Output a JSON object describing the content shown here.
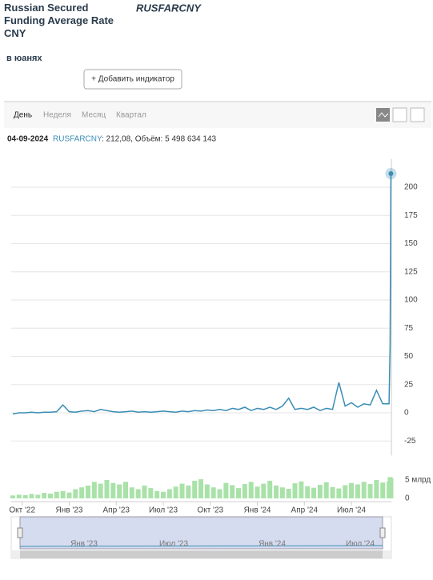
{
  "header": {
    "title": "Russian Secured Funding Average Rate CNY",
    "ticker": "RUSFARCNY",
    "unit": "в юанях"
  },
  "toolbar": {
    "button": "+ Добавить индикатор",
    "tabs": [
      "День",
      "Неделя",
      "Месяц",
      "Квартал"
    ],
    "active_tab": 0
  },
  "info": {
    "date": "04-09-2024",
    "text": ": 212,08, Объём: 5 498 634 143"
  },
  "chart_data": {
    "type": "line",
    "x": [
      -0.6,
      -0.2,
      0.2,
      0.6,
      1,
      1.4,
      1.8,
      2.2,
      2.6,
      3,
      3.4,
      3.8,
      4.2,
      4.6,
      5,
      5.4,
      5.8,
      6.2,
      6.6,
      7,
      7.4,
      7.8,
      8.2,
      8.6,
      9,
      9.4,
      9.8,
      10.2,
      10.6,
      11,
      11.4,
      11.8,
      12.2,
      12.6,
      13,
      13.4,
      13.8,
      14.2,
      14.6,
      15,
      15.4,
      15.8,
      16.2,
      16.6,
      17,
      17.4,
      17.8,
      18.2,
      18.6,
      19,
      19.4,
      19.8,
      20.2,
      20.6,
      21,
      21.4,
      21.8,
      22.2,
      22.6,
      23,
      23.4,
      23.47,
      23.52
    ],
    "series": [
      {
        "name": "RUSFARCNY",
        "color": "#3a8db5",
        "values": [
          -1,
          0,
          0,
          0.5,
          0,
          0.5,
          0.5,
          1,
          7,
          1,
          0.5,
          1.5,
          2,
          1,
          3,
          2,
          1,
          0.5,
          1,
          1.5,
          0.5,
          1,
          0.5,
          1,
          1.5,
          1,
          0.5,
          1.5,
          1,
          2,
          1.5,
          2.5,
          2,
          3,
          2,
          4,
          3,
          5,
          2,
          4,
          3,
          5,
          3,
          6,
          13,
          3,
          4,
          3,
          5,
          2,
          4,
          3,
          27,
          6,
          9,
          5,
          8,
          7,
          20,
          8,
          8,
          60,
          212.08
        ]
      }
    ],
    "volume": {
      "color": "#a9e2a9",
      "values": [
        0.8,
        1,
        0.9,
        1.2,
        1,
        1.5,
        1.3,
        1.8,
        2,
        1.6,
        2.5,
        3,
        3.5,
        4.5,
        4,
        5,
        4.2,
        3.8,
        4.5,
        3,
        2.5,
        3.5,
        2.8,
        2,
        1.8,
        2.5,
        3.2,
        4,
        3.5,
        4.8,
        5.2,
        3.8,
        3,
        2.5,
        4.2,
        3.6,
        2.8,
        3.9,
        4.5,
        3.2,
        4,
        4.8,
        3.5,
        3,
        2.6,
        4.1,
        4.6,
        3.3,
        2.9,
        3.7,
        4.4,
        3.1,
        2.7,
        3.6,
        4.2,
        3.8,
        4.5,
        3.9,
        5,
        4.3,
        4.6,
        5.8,
        5.5
      ],
      "ylim": [
        0,
        6.5
      ],
      "yticks": [
        0,
        {
          "value": 5,
          "label": "5 млрд"
        }
      ]
    },
    "xlim": [
      -0.7,
      23.55
    ],
    "xticks": [
      {
        "value": 0,
        "label": "Окт '22"
      },
      {
        "value": 3,
        "label": "Янв '23"
      },
      {
        "value": 6,
        "label": "Апр '23"
      },
      {
        "value": 9,
        "label": "Июл '23"
      },
      {
        "value": 12,
        "label": "Окт '23"
      },
      {
        "value": 15,
        "label": "Янв '24"
      },
      {
        "value": 18,
        "label": "Апр '24"
      },
      {
        "value": 21,
        "label": "Июл '24"
      }
    ],
    "ylim": [
      -35,
      225
    ],
    "yticks": [
      -25,
      0,
      25,
      50,
      75,
      100,
      125,
      150,
      175,
      200
    ],
    "grid": true
  },
  "navigator": {
    "labels": [
      "Янв '23",
      "Июл '23",
      "Янв '24",
      "Июл '24"
    ]
  }
}
